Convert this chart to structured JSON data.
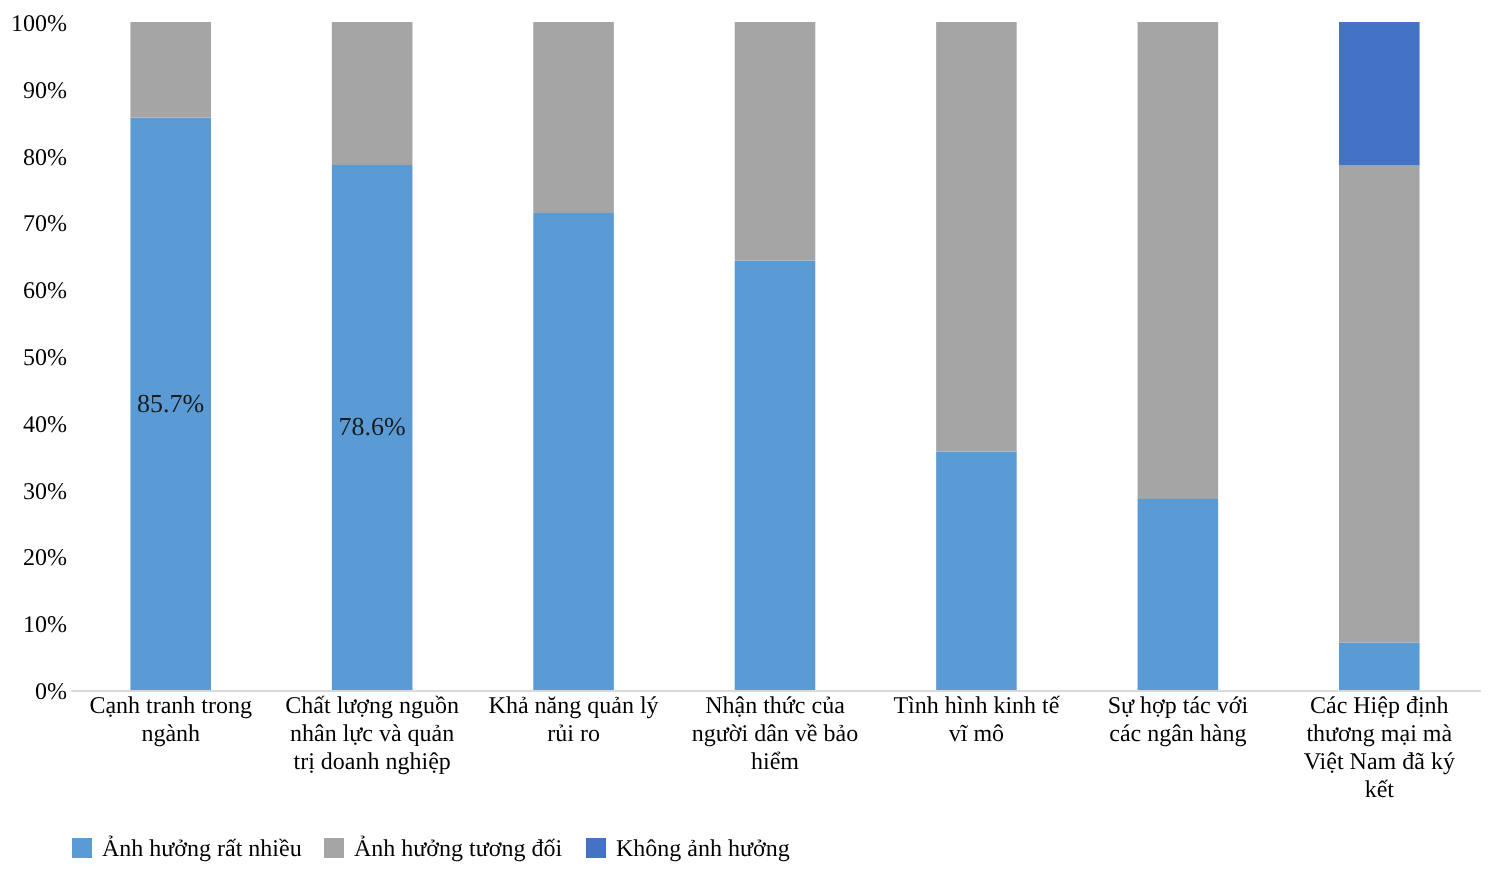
{
  "chart_data": {
    "type": "bar",
    "stacked": true,
    "categories": [
      "Cạnh tranh trong ngành",
      "Chất lượng nguồn nhân lực và quản trị doanh nghiệp",
      "Khả năng quản lý rủi ro",
      "Nhận thức của người dân về bảo hiểm",
      "Tình hình kinh tế vĩ mô",
      "Sự hợp tác với các ngân hàng",
      "Các Hiệp định thương mại mà Việt Nam đã ký kết"
    ],
    "series": [
      {
        "name": "Ảnh hưởng rất nhiều",
        "color": "#5b9bd5",
        "values": [
          85.7,
          78.6,
          71.4,
          64.3,
          35.7,
          28.6,
          7.1
        ],
        "value_labels": [
          "85.7%",
          "78.6%",
          null,
          null,
          null,
          null,
          null
        ]
      },
      {
        "name": "Ảnh hưởng tương đối",
        "color": "#a5a5a5",
        "values": [
          14.3,
          21.4,
          28.6,
          35.7,
          64.3,
          71.4,
          71.4
        ]
      },
      {
        "name": "Không ảnh hưởng",
        "color": "#4472c4",
        "values": [
          0,
          0,
          0,
          0,
          0,
          0,
          21.5
        ]
      }
    ],
    "ylim": [
      0,
      100
    ],
    "yticks": [
      {
        "value": 0,
        "label": "0%"
      },
      {
        "value": 10,
        "label": "10%"
      },
      {
        "value": 20,
        "label": "20%"
      },
      {
        "value": 30,
        "label": "30%"
      },
      {
        "value": 40,
        "label": "40%"
      },
      {
        "value": 50,
        "label": "50%"
      },
      {
        "value": 60,
        "label": "60%"
      },
      {
        "value": 70,
        "label": "70%"
      },
      {
        "value": 80,
        "label": "80%"
      },
      {
        "value": 90,
        "label": "90%"
      },
      {
        "value": 100,
        "label": "100%"
      }
    ],
    "grid": false,
    "legend": "bottom"
  }
}
